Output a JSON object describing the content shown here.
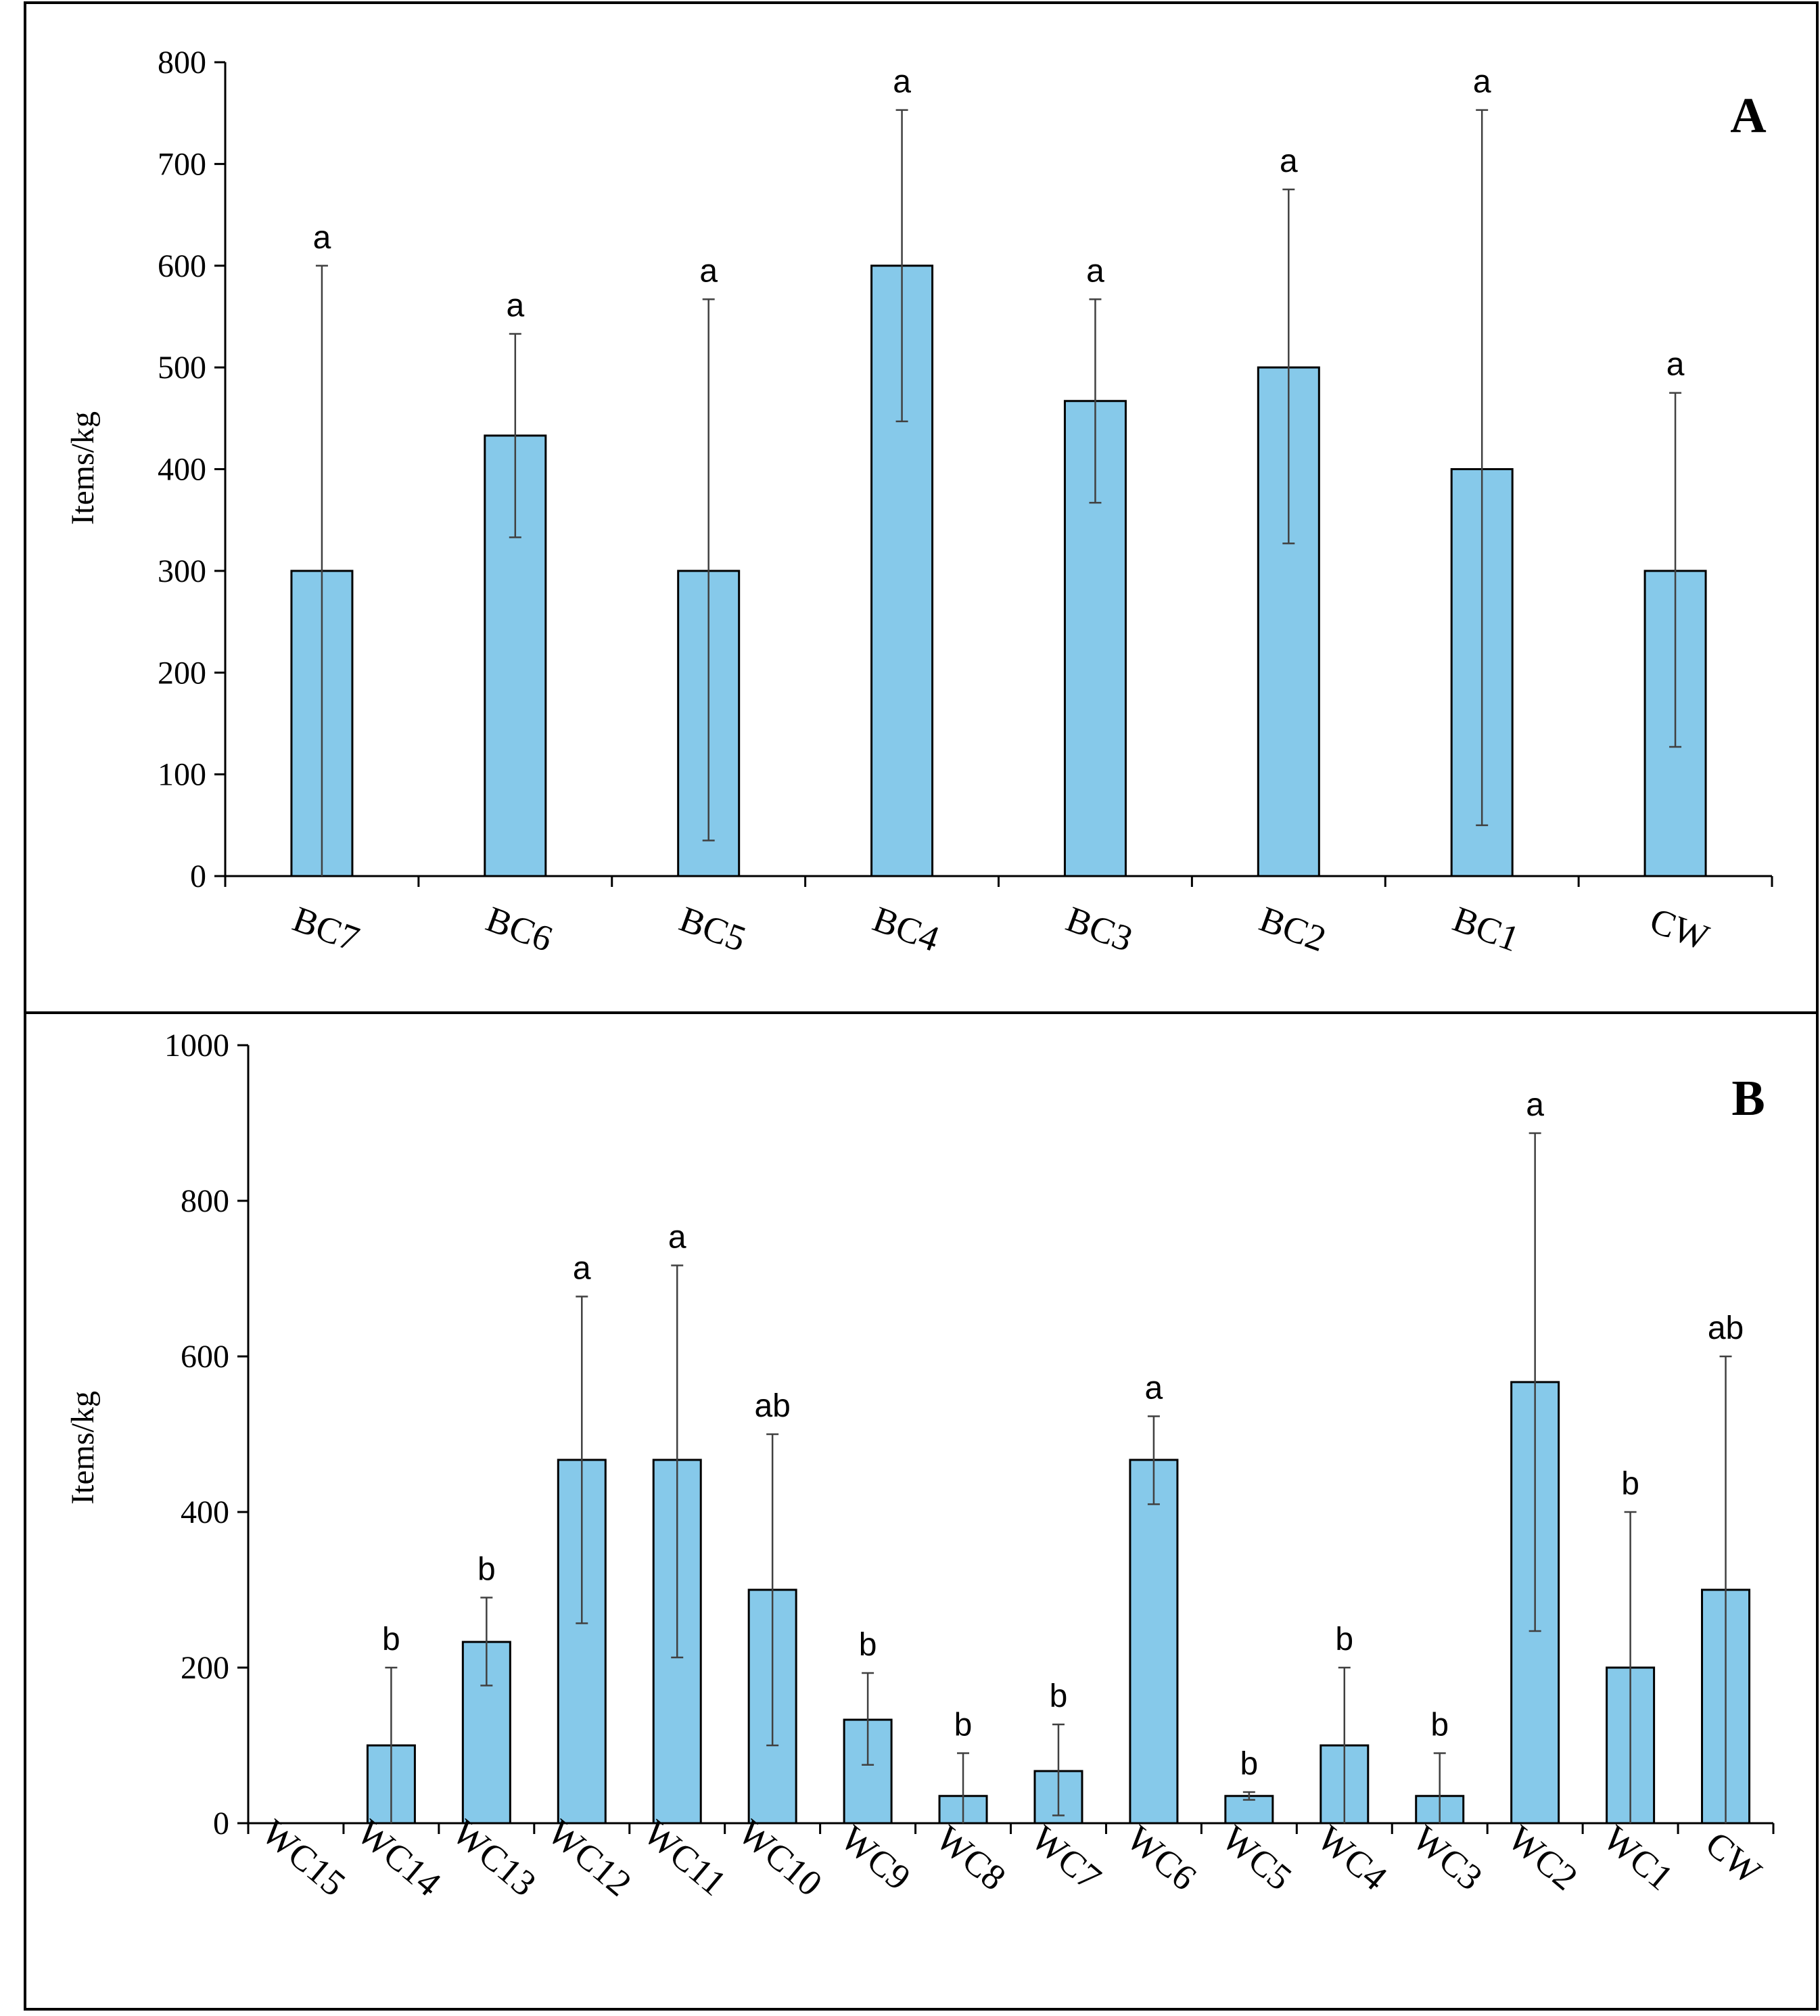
{
  "colors": {
    "bar": "#86C9EA",
    "bar_stroke": "#000000",
    "error": "#404040",
    "frame": "#000000"
  },
  "chart_data": [
    {
      "type": "bar",
      "panel_label": "A",
      "ylabel": "Items/kg",
      "xlabel": "",
      "ylim": [
        0,
        800
      ],
      "yticks": [
        0,
        100,
        200,
        300,
        400,
        500,
        600,
        700,
        800
      ],
      "categories": [
        "BC7",
        "BC6",
        "BC5",
        "BC4",
        "BC3",
        "BC2",
        "BC1",
        "CW"
      ],
      "values": [
        300,
        433,
        300,
        600,
        467,
        500,
        400,
        300
      ],
      "error_low": [
        0,
        333,
        35,
        447,
        367,
        327,
        50,
        127
      ],
      "error_high": [
        600,
        533,
        567,
        753,
        567,
        675,
        753,
        475
      ],
      "significance": [
        "a",
        "a",
        "a",
        "a",
        "a",
        "a",
        "a",
        "a"
      ]
    },
    {
      "type": "bar",
      "panel_label": "B",
      "ylabel": "Items/kg",
      "xlabel": "",
      "ylim": [
        0,
        1000
      ],
      "yticks": [
        0,
        200,
        400,
        600,
        800,
        1000
      ],
      "categories": [
        "WC15",
        "WC14",
        "WC13",
        "WC12",
        "WC11",
        "WC10",
        "WC9",
        "WC8",
        "WC7",
        "WC6",
        "WC5",
        "WC4",
        "WC3",
        "WC2",
        "WC1",
        "CW"
      ],
      "values": [
        0,
        100,
        233,
        467,
        467,
        300,
        133,
        35,
        67,
        467,
        35,
        100,
        35,
        567,
        200,
        300
      ],
      "error_low": [
        0,
        0,
        177,
        257,
        213,
        100,
        75,
        0,
        10,
        410,
        30,
        0,
        0,
        247,
        0,
        0
      ],
      "error_high": [
        0,
        200,
        290,
        677,
        717,
        500,
        193,
        90,
        127,
        523,
        40,
        200,
        90,
        887,
        400,
        600
      ],
      "significance": [
        "",
        "b",
        "b",
        "a",
        "a",
        "ab",
        "b",
        "b",
        "b",
        "a",
        "b",
        "b",
        "b",
        "a",
        "b",
        "ab"
      ]
    }
  ]
}
